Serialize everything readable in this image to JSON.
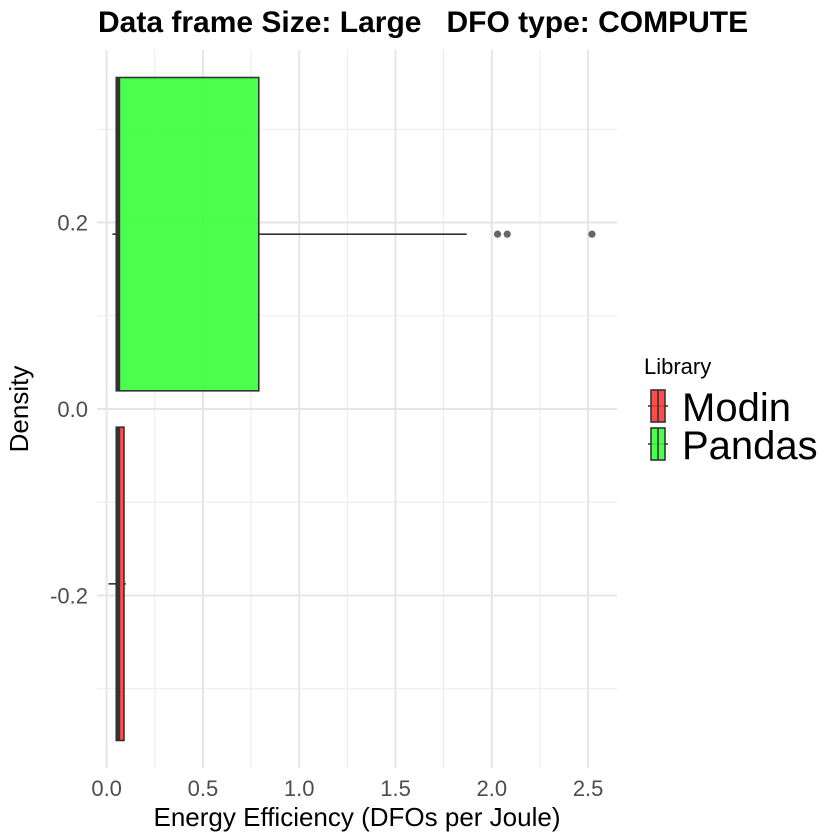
{
  "chart_data": {
    "type": "boxplot",
    "title": "Data frame Size: Large   DFO type: COMPUTE",
    "xlabel": "Energy Efficiency (DFOs per Joule)",
    "ylabel": "Density",
    "xlim": [
      -0.05,
      2.65
    ],
    "ylim": [
      -0.385,
      0.385
    ],
    "x_ticks": [
      0.0,
      0.5,
      1.0,
      1.5,
      2.0,
      2.5
    ],
    "x_tick_labels": [
      "0.0",
      "0.5",
      "1.0",
      "1.5",
      "2.0",
      "2.5"
    ],
    "y_ticks": [
      -0.2,
      0.0,
      0.2
    ],
    "y_tick_labels": [
      "-0.2",
      "0.0",
      "0.2"
    ],
    "grid": true,
    "legend": {
      "title": "Library",
      "position": "right",
      "entries": [
        {
          "label": "Modin",
          "color": "#ff3333"
        },
        {
          "label": "Pandas",
          "color": "#33ff33"
        }
      ]
    },
    "series": [
      {
        "name": "Modin",
        "color": "#ff3333",
        "y_center": -0.1875,
        "y_range": [
          -0.3555,
          -0.0195
        ],
        "whisker_low": 0.01,
        "q1": 0.05,
        "median": 0.06,
        "q3": 0.09,
        "whisker_high": 0.1,
        "outliers": []
      },
      {
        "name": "Pandas",
        "color": "#33ff33",
        "y_center": 0.1875,
        "y_range": [
          0.0195,
          0.3555
        ],
        "whisker_low": 0.03,
        "q1": 0.05,
        "median": 0.06,
        "q3": 0.79,
        "whisker_high": 1.87,
        "outliers": [
          2.03,
          2.08,
          2.52
        ]
      }
    ]
  }
}
